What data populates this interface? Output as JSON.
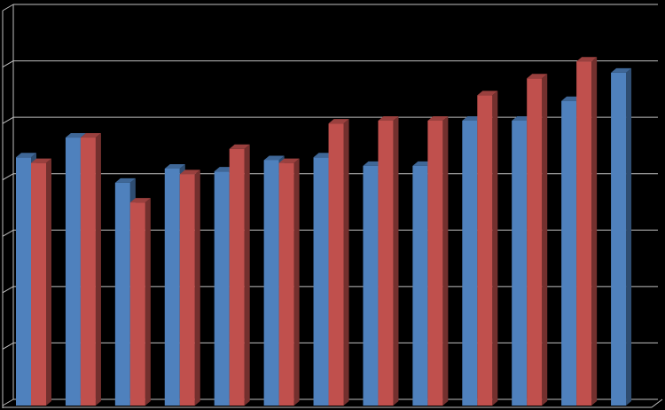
{
  "chart_data": {
    "type": "bar3d",
    "categories": [
      null,
      null,
      null,
      null,
      null,
      null,
      null,
      null,
      null,
      null,
      null,
      null,
      null
    ],
    "series": [
      {
        "color": "#4f81bd",
        "values": [
          4.4,
          4.75,
          3.95,
          4.2,
          4.15,
          4.35,
          4.4,
          4.25,
          4.25,
          5.05,
          5.05,
          5.4,
          5.9
        ]
      },
      {
        "color": "#c0504d",
        "values": [
          4.3,
          4.75,
          3.6,
          4.1,
          4.55,
          4.3,
          5.0,
          5.05,
          5.05,
          5.5,
          5.8,
          6.1,
          null
        ]
      }
    ],
    "ylim": [
      0,
      7
    ],
    "yticks": [
      0,
      1,
      2,
      3,
      4,
      5,
      6,
      7
    ],
    "grid": true
  }
}
